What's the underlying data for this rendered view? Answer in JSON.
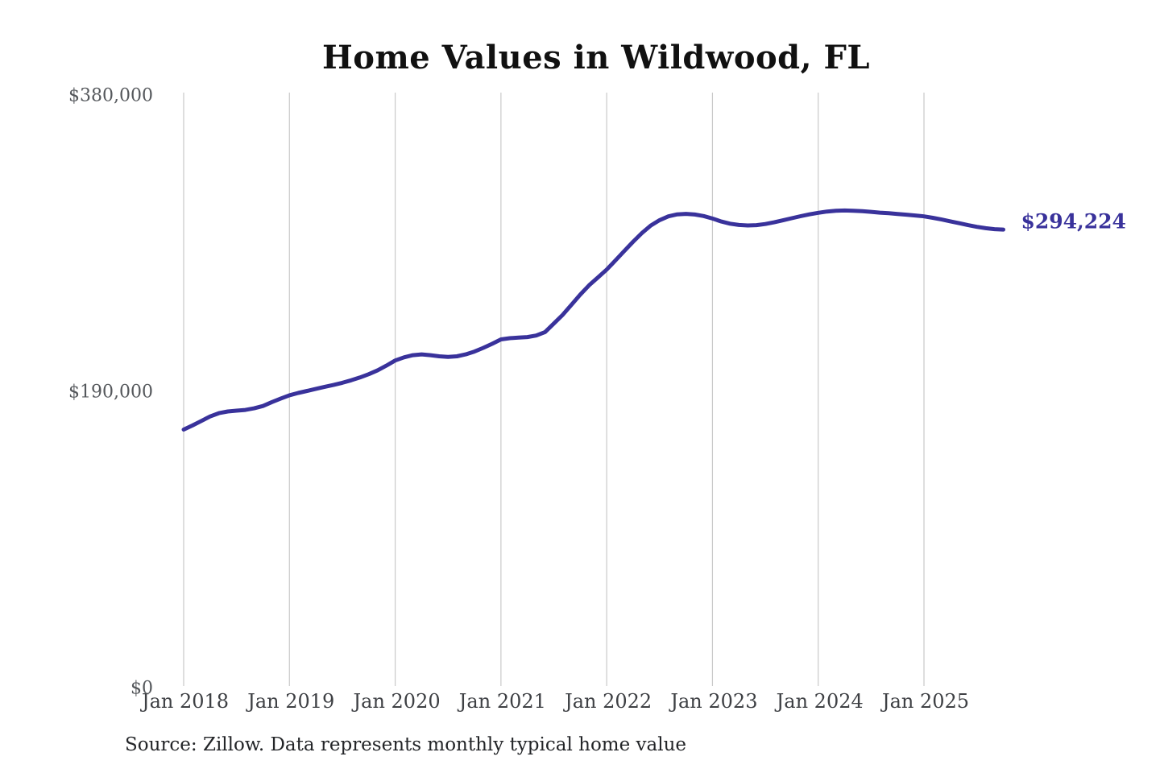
{
  "title": "Home Values in Wildwood, FL",
  "source_note": "Source: Zillow. Data represents monthly typical home value",
  "colors": {
    "line": "#39329b",
    "grid": "#c9c9c9",
    "y_tick_text": "#55585c",
    "x_tick_text": "#3e4044",
    "title_text": "#111111",
    "source_text": "#232528",
    "background": "#ffffff",
    "end_label_text": "#39329b"
  },
  "chart_data": {
    "type": "line",
    "title": "Home Values in Wildwood, FL",
    "series_name": "Typical home value",
    "unit": "USD",
    "frequency": "monthly",
    "start_month": "2018-01",
    "end_month": "2025-10",
    "ylim": [
      0,
      380000
    ],
    "y_ticks": [
      {
        "label": "$0",
        "value": 0
      },
      {
        "label": "$190,000",
        "value": 190000
      },
      {
        "label": "$380,000",
        "value": 380000
      }
    ],
    "x_tick_labels": [
      "Jan 2018",
      "Jan 2019",
      "Jan 2020",
      "Jan 2021",
      "Jan 2022",
      "Jan 2023",
      "Jan 2024",
      "Jan 2025"
    ],
    "grid": "vertical-only",
    "legend": "none",
    "latest_value": 294224,
    "latest_value_label": "$294,224",
    "values": [
      166000,
      168600,
      171500,
      174400,
      176500,
      177600,
      178100,
      178600,
      179600,
      181100,
      183600,
      185800,
      188000,
      189500,
      190800,
      192100,
      193400,
      194600,
      196000,
      197600,
      199400,
      201500,
      204000,
      207000,
      210300,
      212300,
      213700,
      214200,
      213700,
      213000,
      212600,
      213000,
      214200,
      216000,
      218400,
      221000,
      223800,
      224600,
      225000,
      225300,
      226300,
      228500,
      234000,
      239500,
      246000,
      252500,
      258500,
      263500,
      268600,
      274500,
      280500,
      286500,
      292000,
      296800,
      300300,
      302700,
      304000,
      304300,
      303900,
      302900,
      301300,
      299400,
      298000,
      297200,
      296900,
      297100,
      297800,
      298900,
      300200,
      301500,
      302800,
      304000,
      305000,
      305800,
      306300,
      306500,
      306300,
      306000,
      305600,
      305100,
      304700,
      304200,
      303800,
      303300,
      302700,
      301800,
      300700,
      299500,
      298300,
      297100,
      296000,
      295100,
      294500,
      294224
    ]
  }
}
